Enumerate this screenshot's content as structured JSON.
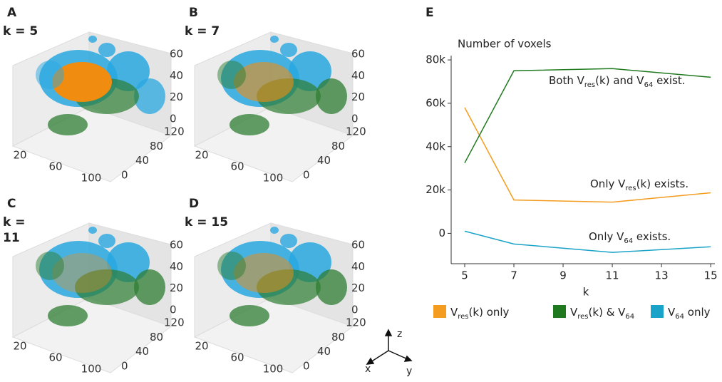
{
  "panels": [
    {
      "letter": "A",
      "k_label": [
        "k = 5"
      ]
    },
    {
      "letter": "B",
      "k_label": [
        "k = 7"
      ]
    },
    {
      "letter": "C",
      "k_label": [
        "k =",
        "11"
      ]
    },
    {
      "letter": "D",
      "k_label": [
        "k = 15"
      ]
    }
  ],
  "panel_axes": {
    "zticks": [
      0,
      20,
      40,
      60
    ],
    "yticks": [
      0,
      40,
      80,
      120
    ],
    "xticks": [
      20,
      60,
      100
    ]
  },
  "compass": {
    "z": "z",
    "x": "x",
    "y": "y"
  },
  "chart_data": {
    "type": "line",
    "panel_letter": "E",
    "y_label": "Number of voxels",
    "x_label": "k",
    "x": [
      5,
      7,
      11,
      15
    ],
    "xlim": [
      4.45,
      15.17
    ],
    "xticks": [
      5,
      7,
      9,
      11,
      13,
      15
    ],
    "ylim": [
      -14000,
      82000
    ],
    "yticks": [
      0,
      {
        "value": 20000,
        "label": "20k"
      },
      {
        "value": 40000,
        "label": "40k"
      },
      {
        "value": 60000,
        "label": "60k"
      },
      {
        "value": 80000,
        "label": "80k"
      }
    ],
    "series": [
      {
        "name": [
          "V",
          "res",
          "(k) only"
        ],
        "color": "#f39c1f",
        "values": [
          58000,
          15400,
          14400,
          18700
        ]
      },
      {
        "name": [
          "V",
          "res",
          "(k) & V",
          "64"
        ],
        "color": "#1f7a1f",
        "values": [
          32500,
          75000,
          76000,
          72000
        ]
      },
      {
        "name": [
          "V",
          "64",
          " only"
        ],
        "color": "#1aa3c8",
        "values": [
          1000,
          -4900,
          -8800,
          -6200
        ]
      }
    ],
    "annotations": [
      [
        "Both V",
        "res",
        "(k) and V",
        "64",
        " exist."
      ],
      [
        "Only V",
        "res",
        "(k) exists."
      ],
      [
        "Only V",
        "64",
        " exists."
      ]
    ]
  }
}
